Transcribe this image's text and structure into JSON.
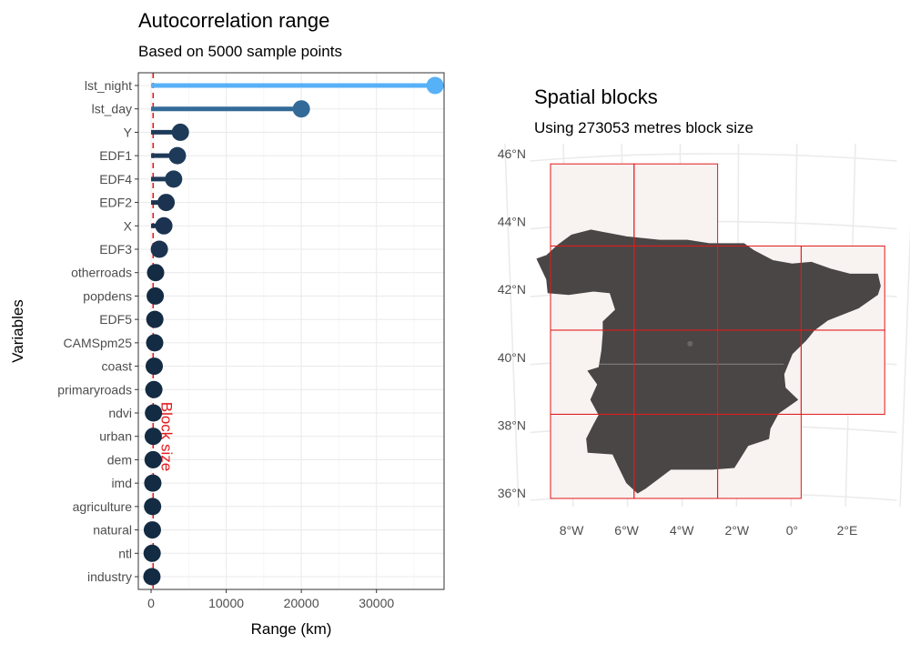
{
  "chart_data": [
    {
      "type": "lollipop",
      "title": "Autocorrelation range",
      "subtitle": "Based on 5000 sample points",
      "xlabel": "Range (km)",
      "ylabel": "Variables",
      "xlim": [
        -1700,
        39000
      ],
      "xticks": [
        0,
        10000,
        20000,
        30000
      ],
      "xtick_labels": [
        "0",
        "10000",
        "20000",
        "30000"
      ],
      "grid": true,
      "reference_line": {
        "value": 273,
        "label": "Block size",
        "color": "#e31a1c"
      },
      "categories": [
        "lst_night",
        "lst_day",
        "Y",
        "EDF1",
        "EDF4",
        "EDF2",
        "X",
        "EDF3",
        "otherroads",
        "popdens",
        "EDF5",
        "CAMSpm25",
        "coast",
        "primaryroads",
        "ndvi",
        "urban",
        "dem",
        "imd",
        "agriculture",
        "natural",
        "ntl",
        "industry"
      ],
      "values": [
        37800,
        20000,
        3900,
        3500,
        3000,
        2000,
        1700,
        1100,
        600,
        550,
        500,
        480,
        420,
        370,
        320,
        290,
        270,
        230,
        200,
        170,
        140,
        110
      ],
      "colors": [
        "#56b1f7",
        "#336a98",
        "#1e3a59",
        "#1e3a59",
        "#1e3a59",
        "#1b3350",
        "#1b3350",
        "#1b3350",
        "#132b43",
        "#132b43",
        "#132b43",
        "#132b43",
        "#132b43",
        "#132b43",
        "#132b43",
        "#132b43",
        "#132b43",
        "#132b43",
        "#132b43",
        "#132b43",
        "#132b43",
        "#132b43"
      ]
    },
    {
      "type": "map",
      "title": "Spatial blocks",
      "subtitle": "Using 273053 metres block size",
      "lat_ticks": [
        46,
        44,
        42,
        40,
        38,
        36
      ],
      "lat_labels": [
        "46°N",
        "44°N",
        "42°N",
        "40°N",
        "38°N",
        "36°N"
      ],
      "lon_ticks": [
        -8,
        -6,
        -4,
        -2,
        0,
        2
      ],
      "lon_labels": [
        "8°W",
        "6°W",
        "4°W",
        "2°W",
        "0°",
        "2°E"
      ],
      "land_color": "#4a4646",
      "block_fill": "#f8f2f0",
      "block_border": "#e31a1c",
      "blocks": [
        {
          "lon": [
            -8.76,
            -5.73
          ],
          "lat": [
            43.28,
            45.7
          ]
        },
        {
          "lon": [
            -5.73,
            -2.7
          ],
          "lat": [
            43.28,
            45.7
          ]
        },
        {
          "lon": [
            -8.76,
            -5.73
          ],
          "lat": [
            40.8,
            43.28
          ]
        },
        {
          "lon": [
            -5.73,
            -2.7
          ],
          "lat": [
            40.8,
            43.28
          ]
        },
        {
          "lon": [
            -2.7,
            0.33
          ],
          "lat": [
            40.8,
            43.28
          ]
        },
        {
          "lon": [
            0.33,
            3.36
          ],
          "lat": [
            40.8,
            43.28
          ]
        },
        {
          "lon": [
            -8.76,
            -5.73
          ],
          "lat": [
            38.32,
            40.8
          ]
        },
        {
          "lon": [
            -5.73,
            -2.7
          ],
          "lat": [
            38.32,
            40.8
          ]
        },
        {
          "lon": [
            -2.7,
            0.33
          ],
          "lat": [
            38.32,
            40.8
          ]
        },
        {
          "lon": [
            0.33,
            3.36
          ],
          "lat": [
            38.32,
            40.8
          ]
        },
        {
          "lon": [
            -8.76,
            -5.73
          ],
          "lat": [
            35.84,
            38.32
          ]
        },
        {
          "lon": [
            -5.73,
            -2.7
          ],
          "lat": [
            35.84,
            38.32
          ]
        },
        {
          "lon": [
            -2.7,
            0.33
          ],
          "lat": [
            35.84,
            38.32
          ]
        }
      ],
      "outline": [
        [
          -8.9,
          43.0
        ],
        [
          -8.5,
          43.3
        ],
        [
          -8.0,
          43.6
        ],
        [
          -7.3,
          43.75
        ],
        [
          -6.0,
          43.55
        ],
        [
          -4.8,
          43.45
        ],
        [
          -3.8,
          43.45
        ],
        [
          -3.0,
          43.35
        ],
        [
          -2.0,
          43.35
        ],
        [
          -1.75,
          43.35
        ],
        [
          -1.4,
          43.15
        ],
        [
          -0.7,
          42.85
        ],
        [
          0.0,
          42.75
        ],
        [
          0.7,
          42.8
        ],
        [
          1.4,
          42.6
        ],
        [
          2.1,
          42.45
        ],
        [
          3.1,
          42.45
        ],
        [
          3.2,
          42.1
        ],
        [
          3.1,
          41.85
        ],
        [
          2.4,
          41.45
        ],
        [
          1.3,
          41.1
        ],
        [
          0.8,
          40.8
        ],
        [
          0.5,
          40.5
        ],
        [
          0.0,
          40.1
        ],
        [
          -0.3,
          39.5
        ],
        [
          -0.25,
          39.1
        ],
        [
          0.2,
          38.75
        ],
        [
          -0.5,
          38.35
        ],
        [
          -0.8,
          37.9
        ],
        [
          -0.85,
          37.6
        ],
        [
          -1.6,
          37.4
        ],
        [
          -2.1,
          36.75
        ],
        [
          -2.9,
          36.7
        ],
        [
          -4.4,
          36.7
        ],
        [
          -5.3,
          36.15
        ],
        [
          -5.6,
          36.0
        ],
        [
          -6.0,
          36.3
        ],
        [
          -6.3,
          36.8
        ],
        [
          -6.5,
          37.15
        ],
        [
          -7.4,
          37.2
        ],
        [
          -7.45,
          37.6
        ],
        [
          -7.2,
          38.0
        ],
        [
          -7.0,
          38.3
        ],
        [
          -7.3,
          38.75
        ],
        [
          -7.05,
          39.2
        ],
        [
          -7.4,
          39.6
        ],
        [
          -7.0,
          39.7
        ],
        [
          -6.9,
          40.2
        ],
        [
          -6.85,
          40.7
        ],
        [
          -6.85,
          41.05
        ],
        [
          -6.4,
          41.4
        ],
        [
          -6.6,
          41.9
        ],
        [
          -7.2,
          41.95
        ],
        [
          -8.1,
          41.85
        ],
        [
          -8.85,
          41.9
        ],
        [
          -8.9,
          42.3
        ],
        [
          -9.25,
          42.9
        ],
        [
          -8.9,
          43.0
        ]
      ]
    }
  ]
}
